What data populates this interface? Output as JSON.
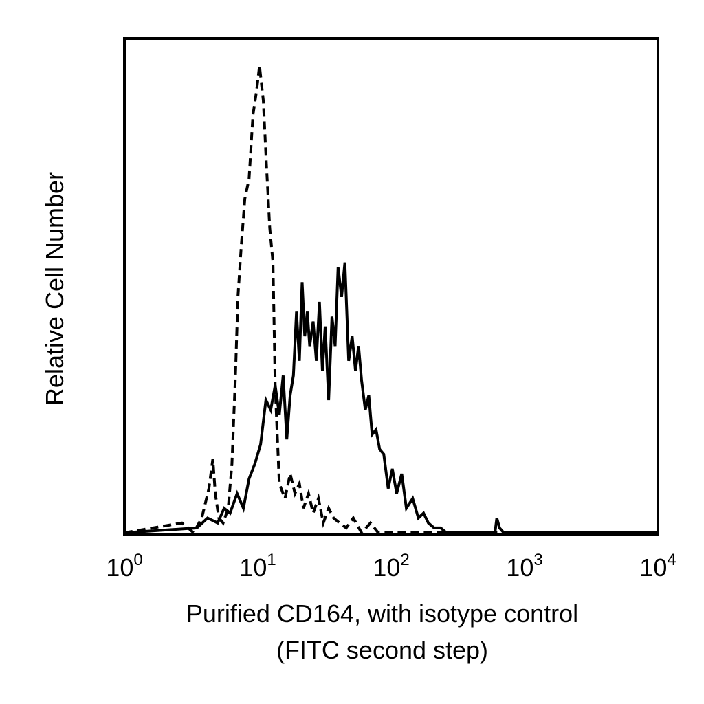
{
  "chart_data": {
    "type": "line",
    "title": "",
    "xlabel_lines": [
      "Purified CD164, with isotype control",
      "(FITC second step)"
    ],
    "ylabel": "Relative Cell Number",
    "x_scale": "log",
    "xlim": [
      1,
      10000
    ],
    "ylim": [
      0,
      1
    ],
    "grid": false,
    "legend": "none",
    "x_ticks": [
      {
        "base": "10",
        "exp": "0",
        "value": 1
      },
      {
        "base": "10",
        "exp": "1",
        "value": 10
      },
      {
        "base": "10",
        "exp": "2",
        "value": 100
      },
      {
        "base": "10",
        "exp": "3",
        "value": 1000
      },
      {
        "base": "10",
        "exp": "4",
        "value": 10000
      }
    ],
    "series": [
      {
        "style": "dashed",
        "color": "#000000",
        "x": [
          1,
          2.7,
          3.0,
          3.3,
          3.8,
          4.3,
          4.6,
          4.8,
          5.1,
          5.5,
          6.0,
          6.4,
          6.8,
          7.1,
          7.5,
          8.0,
          8.6,
          9.2,
          9.8,
          10.3,
          11.0,
          11.6,
          12.3,
          13.0,
          13.5,
          14.5,
          16.0,
          17.5,
          19.0,
          20.5,
          22.0,
          24.0,
          26.0,
          28.5,
          31.0,
          34.0,
          37.0,
          41.0,
          46.0,
          52.0,
          60.0,
          70.0,
          80.0,
          10000
        ],
        "y": [
          0,
          0.02,
          0.01,
          0.0,
          0.03,
          0.09,
          0.15,
          0.08,
          0.03,
          0.02,
          0.05,
          0.14,
          0.32,
          0.48,
          0.58,
          0.68,
          0.72,
          0.85,
          0.9,
          0.95,
          0.88,
          0.75,
          0.62,
          0.55,
          0.3,
          0.1,
          0.07,
          0.12,
          0.08,
          0.1,
          0.05,
          0.08,
          0.04,
          0.07,
          0.02,
          0.05,
          0.03,
          0.02,
          0.01,
          0.03,
          0.0,
          0.02,
          0.0,
          0
        ]
      },
      {
        "style": "solid",
        "color": "#000000",
        "x": [
          1,
          3.5,
          4.2,
          5.0,
          5.6,
          6.2,
          7.0,
          7.8,
          8.6,
          9.5,
          10.5,
          11.5,
          12.5,
          13.5,
          14.5,
          15.5,
          16.5,
          17.5,
          18.5,
          19.5,
          20.5,
          21.5,
          22.5,
          23.5,
          24.5,
          26.0,
          27.5,
          29.0,
          30.5,
          32.0,
          34.0,
          36.0,
          38.0,
          40.0,
          42.5,
          45.0,
          48.0,
          51.0,
          54.0,
          57.0,
          60.0,
          64.0,
          68.0,
          72.0,
          77.0,
          82.0,
          88.0,
          95.0,
          102.0,
          110.0,
          120.0,
          130.0,
          145.0,
          160.0,
          175.0,
          190.0,
          210.0,
          235.0,
          260.0,
          600.0,
          620.0,
          650.0,
          700.0,
          10000
        ],
        "y": [
          0,
          0.01,
          0.03,
          0.02,
          0.05,
          0.04,
          0.08,
          0.05,
          0.11,
          0.14,
          0.18,
          0.27,
          0.25,
          0.3,
          0.24,
          0.32,
          0.19,
          0.28,
          0.32,
          0.45,
          0.35,
          0.51,
          0.4,
          0.45,
          0.38,
          0.43,
          0.35,
          0.47,
          0.33,
          0.42,
          0.27,
          0.44,
          0.38,
          0.54,
          0.48,
          0.55,
          0.35,
          0.4,
          0.33,
          0.38,
          0.31,
          0.25,
          0.28,
          0.2,
          0.21,
          0.17,
          0.16,
          0.09,
          0.13,
          0.08,
          0.12,
          0.05,
          0.07,
          0.03,
          0.04,
          0.02,
          0.01,
          0.01,
          0,
          0,
          0.03,
          0.01,
          0,
          0
        ]
      }
    ]
  }
}
